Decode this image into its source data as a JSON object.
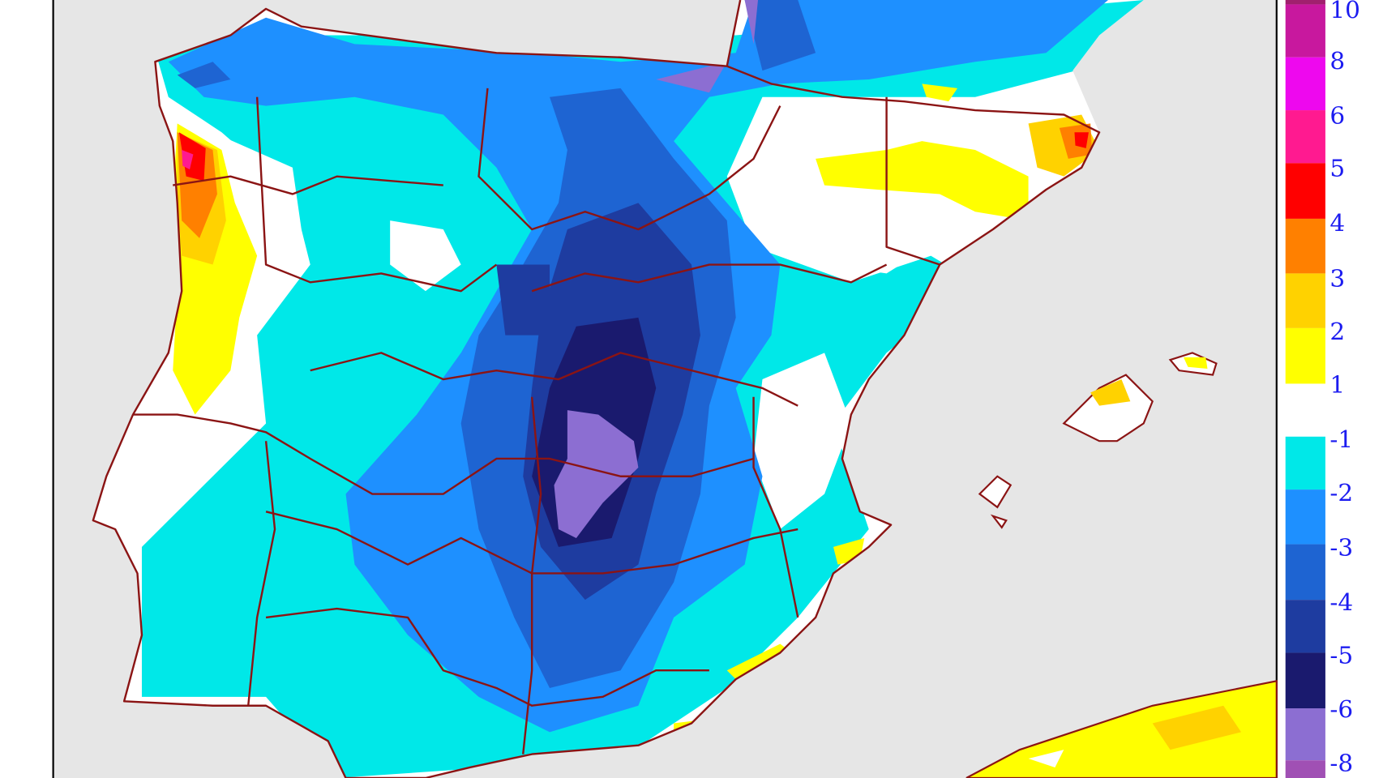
{
  "map": {
    "colors": {
      "sea": "#e6e6e6",
      "land_neutral": "#ffffff",
      "borders": "#8b1414",
      "label": "#1c1cf0"
    }
  },
  "legend": {
    "labels": [
      "10",
      "8",
      "6",
      "5",
      "4",
      "3",
      "2",
      "1",
      "-1",
      "-2",
      "-3",
      "-4",
      "-5",
      "-6",
      "-8"
    ],
    "bands": [
      {
        "range": ">10",
        "color": "#a0206e"
      },
      {
        "range": "8 to 10",
        "color": "#c8189e"
      },
      {
        "range": "6 to 8",
        "color": "#ee08ee"
      },
      {
        "range": "5 to 6",
        "color": "#ff1a90"
      },
      {
        "range": "4 to 5",
        "color": "#ff0000"
      },
      {
        "range": "3 to 4",
        "color": "#ff8000"
      },
      {
        "range": "2 to 3",
        "color": "#ffd200"
      },
      {
        "range": "1 to 2",
        "color": "#ffff00"
      },
      {
        "range": "-1 to 1",
        "color": "#ffffff"
      },
      {
        "range": "-2 to -1",
        "color": "#00e8e8"
      },
      {
        "range": "-3 to -2",
        "color": "#1e90ff"
      },
      {
        "range": "-4 to -3",
        "color": "#1e64d2"
      },
      {
        "range": "-5 to -4",
        "color": "#1e3ca0"
      },
      {
        "range": "-6 to -5",
        "color": "#1a1a6e"
      },
      {
        "range": "-8 to -6",
        "color": "#8c6ed2"
      },
      {
        "range": "<-8",
        "color": "#a050b4"
      }
    ]
  }
}
